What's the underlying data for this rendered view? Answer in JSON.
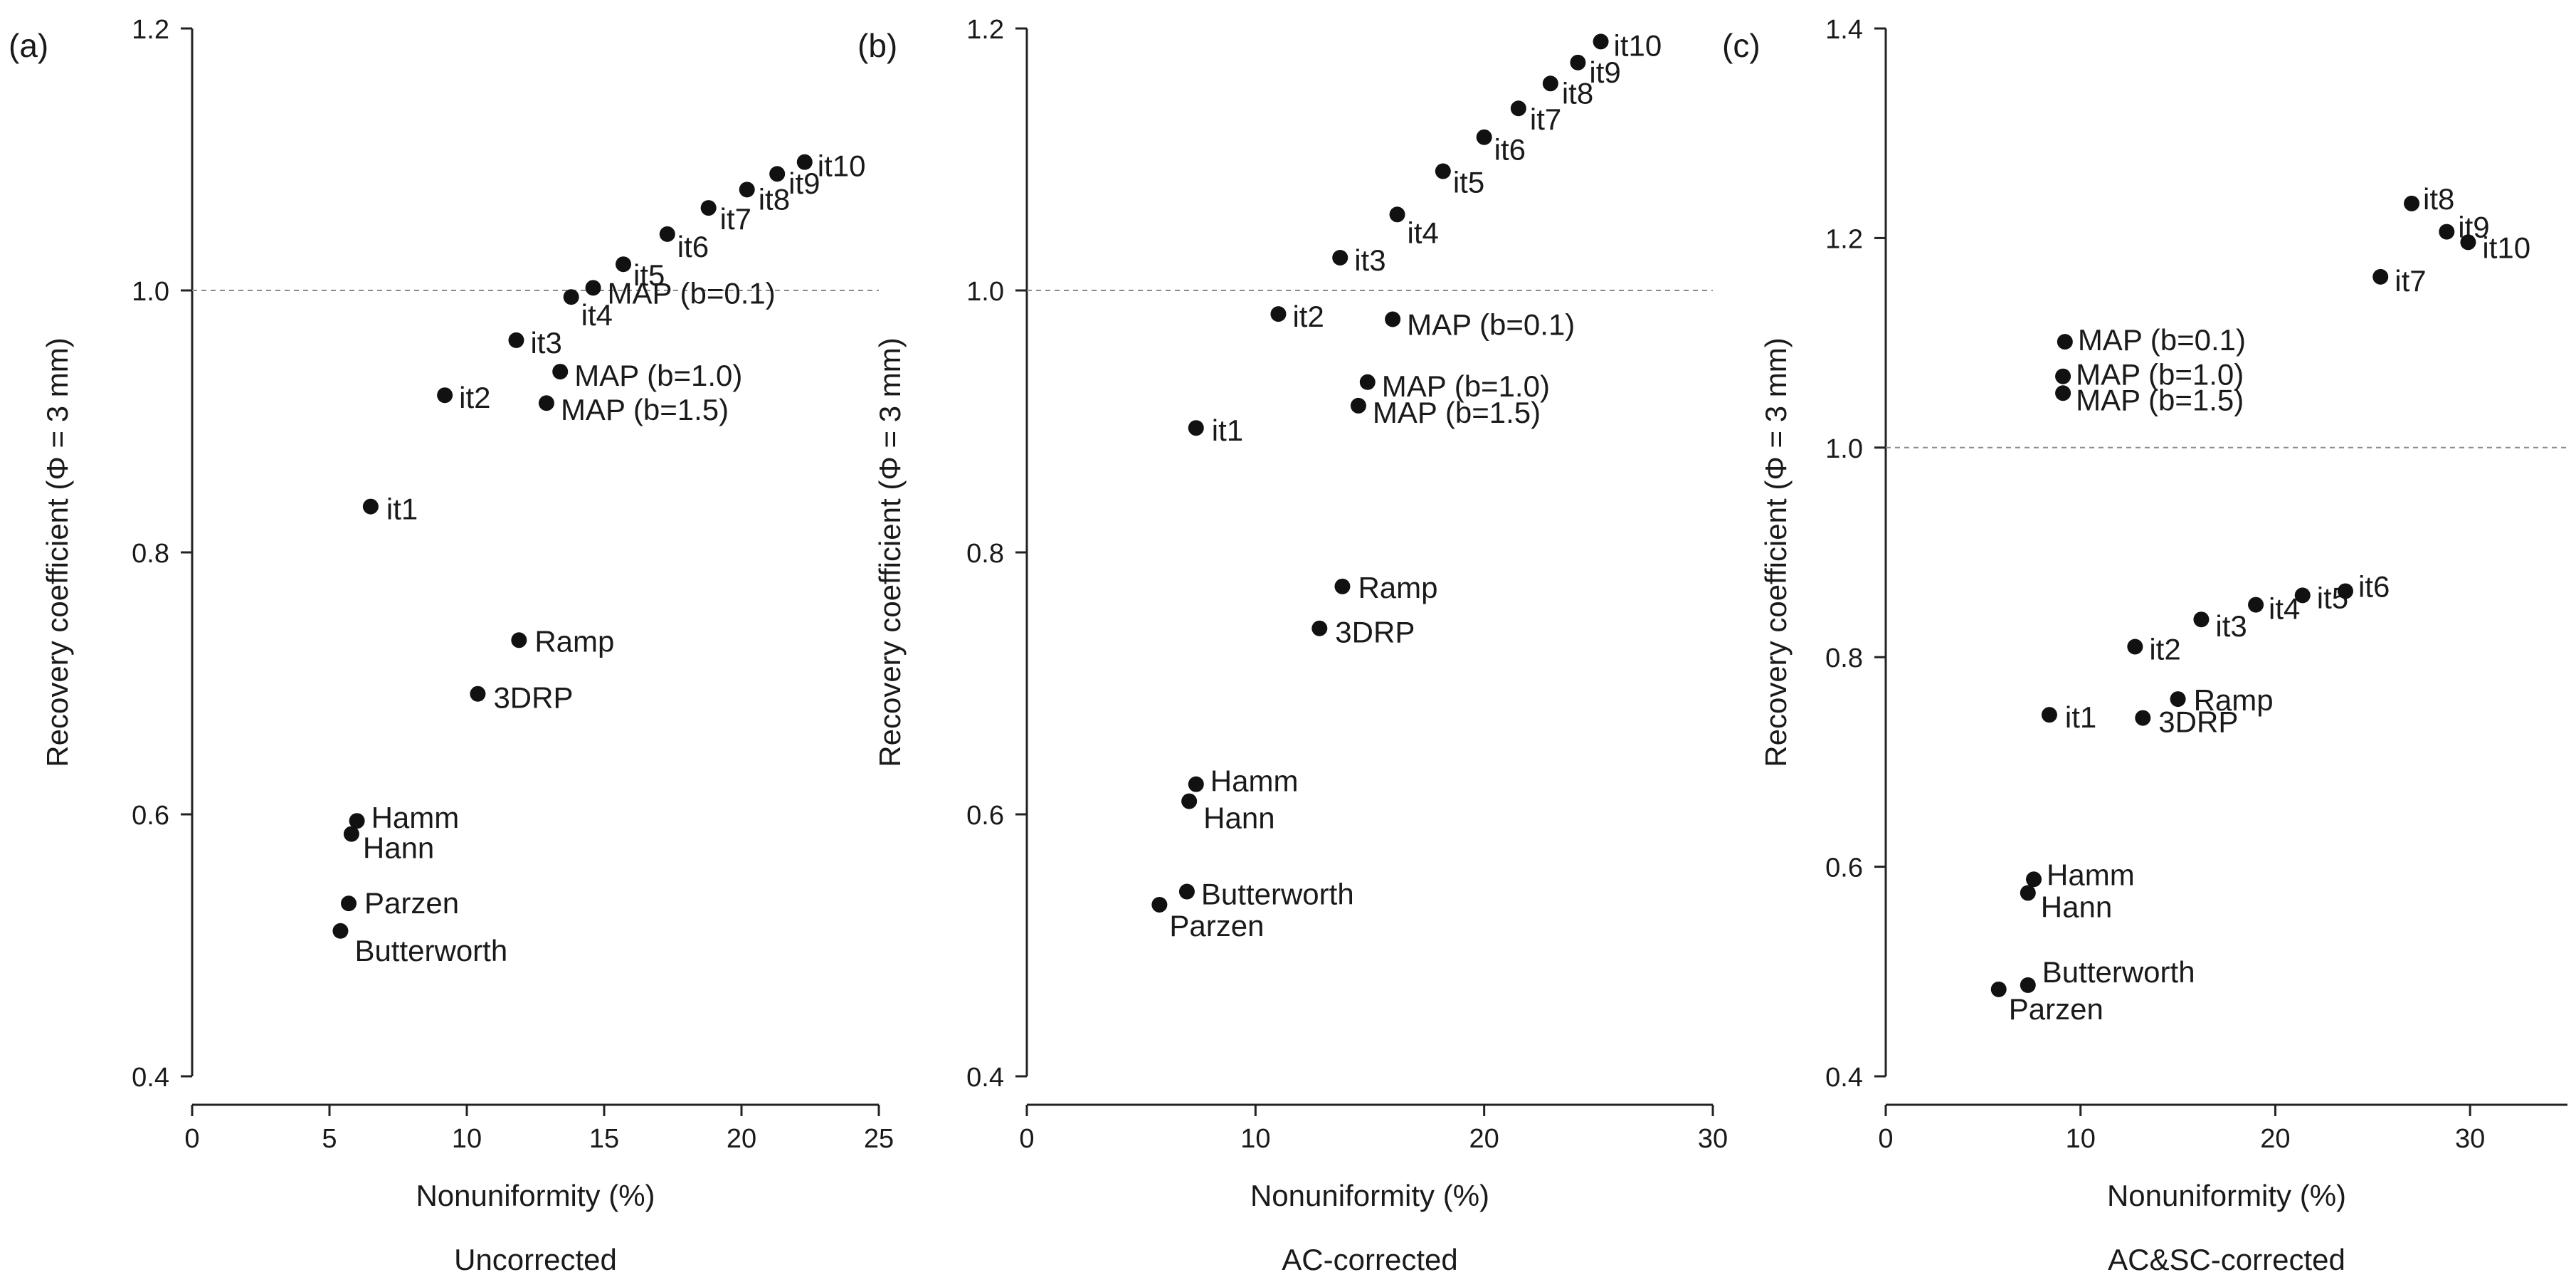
{
  "figure": {
    "ylabel": "Recovery coefficient (Φ = 3 mm)",
    "xlabel": "Nonuniformity (%)",
    "reference_line_y": 1.0
  },
  "chart_data": [
    {
      "type": "scatter",
      "panel_label": "(a)",
      "subtitle": "Uncorrected",
      "xlabel": "Nonuniformity (%)",
      "ylabel": "Recovery coefficient (Φ = 3 mm)",
      "xlim": [
        0,
        25
      ],
      "ylim": [
        0.4,
        1.2
      ],
      "xticks": [
        0,
        5,
        10,
        15,
        20,
        25
      ],
      "yticks": [
        0.4,
        0.6,
        0.8,
        1.0,
        1.2
      ],
      "ytick_labels": [
        "0.4",
        "0.6",
        "0.8",
        "1.0",
        "1.2"
      ],
      "points": [
        {
          "label": "it1",
          "x": 6.5,
          "y": 0.835
        },
        {
          "label": "it2",
          "x": 9.2,
          "y": 0.92
        },
        {
          "label": "it3",
          "x": 11.8,
          "y": 0.962
        },
        {
          "label": "it4",
          "x": 13.8,
          "y": 0.995
        },
        {
          "label": "it5",
          "x": 15.7,
          "y": 1.02
        },
        {
          "label": "it6",
          "x": 17.3,
          "y": 1.043
        },
        {
          "label": "it7",
          "x": 18.8,
          "y": 1.063
        },
        {
          "label": "it8",
          "x": 20.2,
          "y": 1.077
        },
        {
          "label": "it9",
          "x": 21.3,
          "y": 1.089
        },
        {
          "label": "it10",
          "x": 22.3,
          "y": 1.098
        },
        {
          "label": "MAP (b=0.1)",
          "x": 14.6,
          "y": 1.002
        },
        {
          "label": "MAP (b=1.0)",
          "x": 13.4,
          "y": 0.938
        },
        {
          "label": "MAP (b=1.5)",
          "x": 12.9,
          "y": 0.914
        },
        {
          "label": "Ramp",
          "x": 11.9,
          "y": 0.733
        },
        {
          "label": "3DRP",
          "x": 10.4,
          "y": 0.692
        },
        {
          "label": "Hamm",
          "x": 6.0,
          "y": 0.595
        },
        {
          "label": "Hann",
          "x": 5.8,
          "y": 0.585
        },
        {
          "label": "Parzen",
          "x": 5.7,
          "y": 0.532
        },
        {
          "label": "Butterworth",
          "x": 5.4,
          "y": 0.511
        }
      ]
    },
    {
      "type": "scatter",
      "panel_label": "(b)",
      "subtitle": "AC-corrected",
      "xlabel": "Nonuniformity (%)",
      "ylabel": "Recovery coefficient (Φ = 3 mm)",
      "xlim": [
        0,
        30
      ],
      "ylim": [
        0.4,
        1.2
      ],
      "xticks": [
        0,
        10,
        20,
        30
      ],
      "yticks": [
        0.4,
        0.6,
        0.8,
        1.0,
        1.2
      ],
      "ytick_labels": [
        "0.4",
        "0.6",
        "0.8",
        "1.0",
        "1.2"
      ],
      "points": [
        {
          "label": "it1",
          "x": 7.4,
          "y": 0.895
        },
        {
          "label": "it2",
          "x": 11.0,
          "y": 0.982
        },
        {
          "label": "it3",
          "x": 13.7,
          "y": 1.025
        },
        {
          "label": "it4",
          "x": 16.2,
          "y": 1.058
        },
        {
          "label": "it5",
          "x": 18.2,
          "y": 1.091
        },
        {
          "label": "it6",
          "x": 20.0,
          "y": 1.117
        },
        {
          "label": "it7",
          "x": 21.5,
          "y": 1.139
        },
        {
          "label": "it8",
          "x": 22.9,
          "y": 1.158
        },
        {
          "label": "it9",
          "x": 24.1,
          "y": 1.174
        },
        {
          "label": "it10",
          "x": 25.1,
          "y": 1.19
        },
        {
          "label": "MAP (b=0.1)",
          "x": 16.0,
          "y": 0.978
        },
        {
          "label": "MAP (b=1.0)",
          "x": 14.9,
          "y": 0.93
        },
        {
          "label": "MAP (b=1.5)",
          "x": 14.5,
          "y": 0.912
        },
        {
          "label": "Ramp",
          "x": 13.8,
          "y": 0.774
        },
        {
          "label": "3DRP",
          "x": 12.8,
          "y": 0.742
        },
        {
          "label": "Hamm",
          "x": 7.4,
          "y": 0.623
        },
        {
          "label": "Hann",
          "x": 7.1,
          "y": 0.61
        },
        {
          "label": "Butterworth",
          "x": 7.0,
          "y": 0.541
        },
        {
          "label": "Parzen",
          "x": 5.8,
          "y": 0.531
        }
      ]
    },
    {
      "type": "scatter",
      "panel_label": "(c)",
      "subtitle": "AC&SC-corrected",
      "xlabel": "Nonuniformity (%)",
      "ylabel": "Recovery coefficient (Φ = 3 mm)",
      "xlim": [
        0,
        35
      ],
      "ylim": [
        0.4,
        1.4
      ],
      "xticks": [
        0,
        10,
        20,
        30
      ],
      "yticks": [
        0.4,
        0.6,
        0.8,
        1.0,
        1.2,
        1.4
      ],
      "ytick_labels": [
        "0.4",
        "0.6",
        "0.8",
        "1.0",
        "1.2",
        "1.4"
      ],
      "points": [
        {
          "label": "it1",
          "x": 8.4,
          "y": 0.745
        },
        {
          "label": "it2",
          "x": 12.8,
          "y": 0.81
        },
        {
          "label": "it3",
          "x": 16.2,
          "y": 0.836
        },
        {
          "label": "it4",
          "x": 19.0,
          "y": 0.85
        },
        {
          "label": "it5",
          "x": 21.4,
          "y": 0.859
        },
        {
          "label": "it6",
          "x": 23.6,
          "y": 0.863
        },
        {
          "label": "it7",
          "x": 25.4,
          "y": 1.163
        },
        {
          "label": "it8",
          "x": 27.0,
          "y": 1.233
        },
        {
          "label": "it9",
          "x": 28.8,
          "y": 1.206
        },
        {
          "label": "it10",
          "x": 29.9,
          "y": 1.196
        },
        {
          "label": "MAP (b=0.1)",
          "x": 9.2,
          "y": 1.101
        },
        {
          "label": "MAP (b=1.0)",
          "x": 9.1,
          "y": 1.068
        },
        {
          "label": "MAP (b=1.5)",
          "x": 9.1,
          "y": 1.052
        },
        {
          "label": "Ramp",
          "x": 15.0,
          "y": 0.76
        },
        {
          "label": "3DRP",
          "x": 13.2,
          "y": 0.742
        },
        {
          "label": "Hamm",
          "x": 7.6,
          "y": 0.588
        },
        {
          "label": "Hann",
          "x": 7.3,
          "y": 0.575
        },
        {
          "label": "Butterworth",
          "x": 7.3,
          "y": 0.487
        },
        {
          "label": "Parzen",
          "x": 5.8,
          "y": 0.483
        }
      ]
    }
  ]
}
